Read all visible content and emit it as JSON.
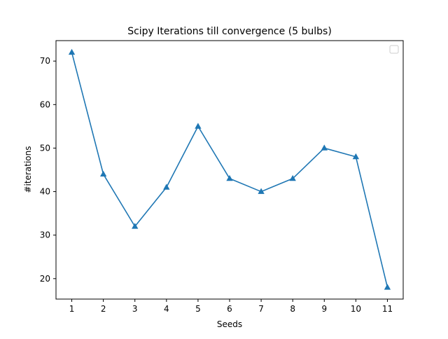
{
  "chart_data": {
    "type": "line",
    "title": "Scipy Iterations till convergence (5 bulbs)",
    "xlabel": "Seeds",
    "ylabel": "#iterations",
    "x": [
      1,
      2,
      3,
      4,
      5,
      6,
      7,
      8,
      9,
      10,
      11
    ],
    "series": [
      {
        "values": [
          72,
          44,
          32,
          41,
          55,
          43,
          40,
          43,
          50,
          48,
          18
        ],
        "color": "#1f77b4",
        "marker": "triangle-up"
      }
    ],
    "xlim": [
      0.5,
      11.5
    ],
    "ylim": [
      15.3,
      74.7
    ],
    "xticks": [
      "1",
      "2",
      "3",
      "4",
      "5",
      "6",
      "7",
      "8",
      "9",
      "10",
      "11"
    ],
    "yticks": [
      "20",
      "30",
      "40",
      "50",
      "60",
      "70"
    ],
    "grid": false,
    "legend": {
      "placement": "top-right",
      "entries": []
    }
  }
}
